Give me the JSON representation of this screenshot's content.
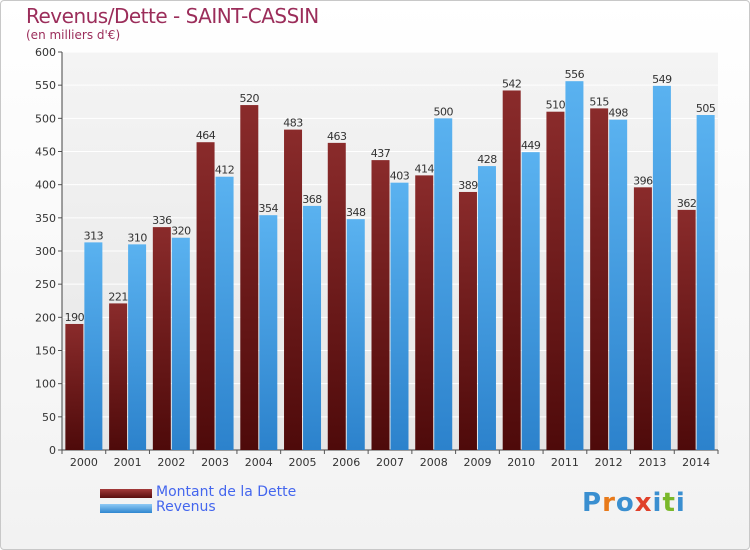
{
  "chart_data": {
    "type": "bar",
    "title": "Revenus/Dette - SAINT-CASSIN",
    "subtitle": "(en milliers d'€)",
    "xlabel": "",
    "ylabel": "",
    "ylim": [
      0,
      600
    ],
    "yticks": [
      0,
      50,
      100,
      150,
      200,
      250,
      300,
      350,
      400,
      450,
      500,
      550,
      600
    ],
    "grid": true,
    "legend_position": "bottom-left",
    "categories": [
      "2000",
      "2001",
      "2002",
      "2003",
      "2004",
      "2005",
      "2006",
      "2007",
      "2008",
      "2009",
      "2010",
      "2011",
      "2012",
      "2013",
      "2014"
    ],
    "series": [
      {
        "name": "Montant de la Dette",
        "color": "#7a1f1f",
        "values": [
          190,
          221,
          336,
          464,
          520,
          483,
          463,
          437,
          414,
          389,
          542,
          510,
          515,
          396,
          362
        ]
      },
      {
        "name": "Revenus",
        "color": "#4da6e8",
        "values": [
          313,
          310,
          320,
          412,
          354,
          368,
          348,
          403,
          500,
          428,
          449,
          556,
          498,
          549,
          505
        ]
      }
    ]
  },
  "logo": {
    "text": "Proxiti",
    "colors": [
      "#3a8fd0",
      "#e87a1a",
      "#3a8fd0",
      "#e0402a",
      "#3a8fd0",
      "#7ab82a",
      "#3a8fd0"
    ]
  }
}
